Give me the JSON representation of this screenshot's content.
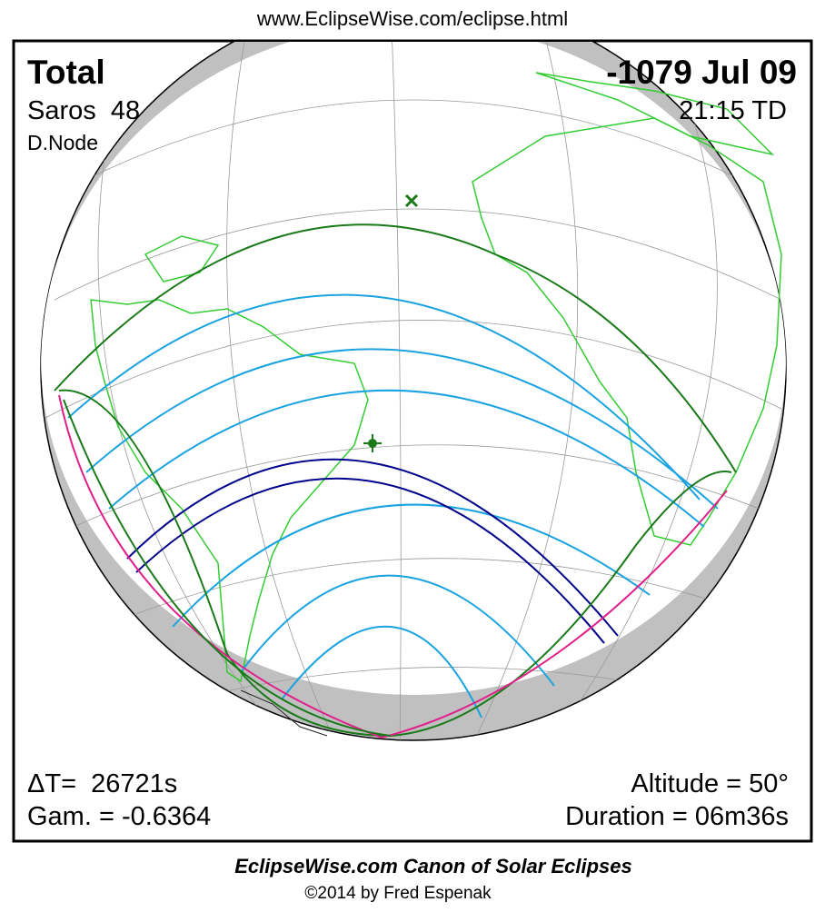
{
  "header": {
    "url": "www.EclipseWise.com/eclipse.html"
  },
  "eclipse": {
    "type": "Total",
    "date": "-1079 Jul 09",
    "saros": "Saros  48",
    "time": "21:15 TD",
    "node": "D.Node",
    "delta_t": "ΔT=  26721s",
    "gamma": "Gam. = -0.6364",
    "altitude": "Altitude = 50°",
    "duration": "Duration = 06m36s"
  },
  "footer": {
    "title": "EclipseWise.com Canon of Solar Eclipses",
    "copyright": "©2014 by Fred Espenak"
  }
}
